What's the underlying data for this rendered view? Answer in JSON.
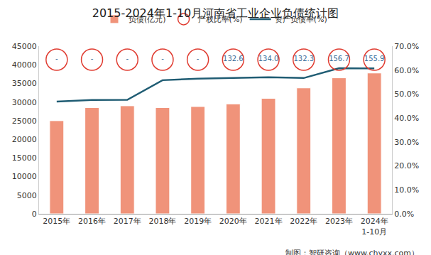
{
  "chart_data": {
    "type": "bar",
    "title": "2015-2024年1-10月河南省工业企业负债统计图",
    "categories": [
      "2015年",
      "2016年",
      "2017年",
      "2018年",
      "2019年",
      "2020年",
      "2021年",
      "2022年",
      "2023年",
      "2024年\n1-10月"
    ],
    "series": [
      {
        "name": "负债(亿元)",
        "type": "bar",
        "color": "#f0937a",
        "values": [
          25000,
          28500,
          29000,
          28500,
          28800,
          29500,
          31000,
          33800,
          36500,
          37800
        ]
      },
      {
        "name": "产权比率(%)",
        "type": "scatter",
        "marker": "circle",
        "color": "#e03c31",
        "values": [
          null,
          null,
          null,
          null,
          null,
          132.6,
          134.0,
          132.3,
          156.7,
          155.9
        ],
        "value_labels": [
          "-",
          "-",
          "-",
          "-",
          "-",
          "132.6",
          "134.0",
          "132.3",
          "156.7",
          "155.9"
        ]
      },
      {
        "name": "资产负债率(%)",
        "type": "line",
        "axis": "y2",
        "color": "#1f5c73",
        "values": [
          46.9,
          47.5,
          47.6,
          55.8,
          56.4,
          56.8,
          57.0,
          56.7,
          60.8,
          60.7
        ]
      }
    ],
    "ylim": [
      0,
      45000
    ],
    "yticks": [
      0,
      5000,
      10000,
      15000,
      20000,
      25000,
      30000,
      35000,
      40000,
      45000
    ],
    "y2lim": [
      0,
      70
    ],
    "y2ticks": [
      {
        "value": 0,
        "label": "0.0%"
      },
      {
        "value": 10,
        "label": "10.0%"
      },
      {
        "value": 20,
        "label": "20.0%"
      },
      {
        "value": 30,
        "label": "30.0%"
      },
      {
        "value": 40,
        "label": "40.0%"
      },
      {
        "value": 50,
        "label": "50.0%"
      },
      {
        "value": 60,
        "label": "60.0%"
      },
      {
        "value": 70,
        "label": "70.0%"
      }
    ],
    "grid": false,
    "legend": "top",
    "source": "制图：智研咨询（www.chyxx.com）"
  }
}
